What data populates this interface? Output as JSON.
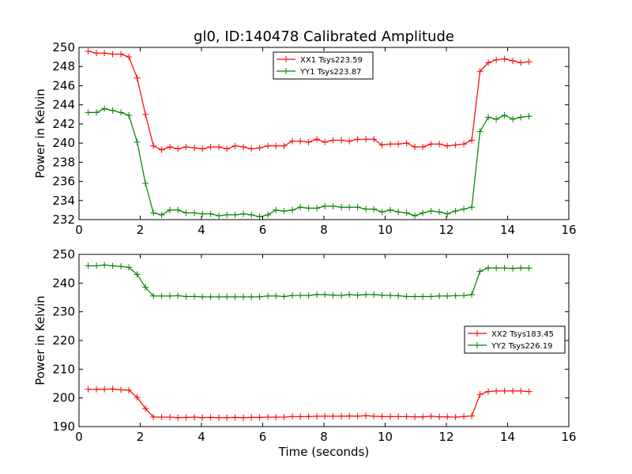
{
  "chart_data": [
    {
      "type": "line",
      "title": "gl0, ID:140478 Calibrated Amplitude",
      "xlabel": "",
      "ylabel": "Power in Kelvin",
      "xlim": [
        0,
        16
      ],
      "ylim": [
        232,
        250
      ],
      "xticks": [
        0,
        2,
        4,
        6,
        8,
        10,
        12,
        14,
        16
      ],
      "yticks": [
        232,
        234,
        236,
        238,
        240,
        242,
        244,
        246,
        248,
        250
      ],
      "grid": false,
      "legend_position": "top-center",
      "x": [
        0.3,
        0.57,
        0.83,
        1.1,
        1.37,
        1.63,
        1.9,
        2.17,
        2.43,
        2.7,
        2.97,
        3.23,
        3.5,
        3.77,
        4.03,
        4.3,
        4.57,
        4.83,
        5.1,
        5.37,
        5.63,
        5.9,
        6.17,
        6.43,
        6.7,
        6.97,
        7.23,
        7.5,
        7.77,
        8.03,
        8.3,
        8.57,
        8.83,
        9.1,
        9.37,
        9.63,
        9.9,
        10.17,
        10.43,
        10.7,
        10.97,
        11.23,
        11.5,
        11.77,
        12.03,
        12.3,
        12.57,
        12.83,
        13.1,
        13.37,
        13.63,
        13.9,
        14.17,
        14.43,
        14.7
      ],
      "series": [
        {
          "name": "XX1 Tsys223.59",
          "color": "#ff0000",
          "values": [
            249.6,
            249.4,
            249.4,
            249.3,
            249.3,
            249.0,
            246.8,
            243.0,
            239.7,
            239.3,
            239.6,
            239.4,
            239.6,
            239.5,
            239.4,
            239.6,
            239.6,
            239.4,
            239.7,
            239.6,
            239.4,
            239.5,
            239.7,
            239.7,
            239.7,
            240.2,
            240.2,
            240.1,
            240.4,
            240.1,
            240.3,
            240.3,
            240.2,
            240.4,
            240.4,
            240.4,
            239.8,
            239.9,
            239.9,
            240.0,
            239.6,
            239.6,
            239.9,
            239.9,
            239.7,
            239.8,
            239.9,
            240.3,
            247.5,
            248.4,
            248.7,
            248.8,
            248.6,
            248.4,
            248.5
          ]
        },
        {
          "name": "YY1 Tsys223.87",
          "color": "#008000",
          "values": [
            243.2,
            243.2,
            243.6,
            243.4,
            243.2,
            242.9,
            240.1,
            235.8,
            232.7,
            232.5,
            233.0,
            233.0,
            232.7,
            232.7,
            232.6,
            232.6,
            232.4,
            232.5,
            232.5,
            232.6,
            232.5,
            232.3,
            232.5,
            233.0,
            232.9,
            233.0,
            233.3,
            233.2,
            233.2,
            233.4,
            233.4,
            233.3,
            233.3,
            233.3,
            233.1,
            233.1,
            232.8,
            233.0,
            232.8,
            232.7,
            232.4,
            232.7,
            232.9,
            232.8,
            232.6,
            232.9,
            233.1,
            233.3,
            241.2,
            242.7,
            242.5,
            242.9,
            242.5,
            242.7,
            242.8
          ]
        }
      ]
    },
    {
      "type": "line",
      "title": "",
      "xlabel": "Time (seconds)",
      "ylabel": "Power in Kelvin",
      "xlim": [
        0,
        16
      ],
      "ylim": [
        190,
        250
      ],
      "xticks": [
        0,
        2,
        4,
        6,
        8,
        10,
        12,
        14,
        16
      ],
      "yticks": [
        190,
        200,
        210,
        220,
        230,
        240,
        250
      ],
      "grid": false,
      "legend_position": "center-right",
      "x": [
        0.3,
        0.57,
        0.83,
        1.1,
        1.37,
        1.63,
        1.9,
        2.17,
        2.43,
        2.7,
        2.97,
        3.23,
        3.5,
        3.77,
        4.03,
        4.3,
        4.57,
        4.83,
        5.1,
        5.37,
        5.63,
        5.9,
        6.17,
        6.43,
        6.7,
        6.97,
        7.23,
        7.5,
        7.77,
        8.03,
        8.3,
        8.57,
        8.83,
        9.1,
        9.37,
        9.63,
        9.9,
        10.17,
        10.43,
        10.7,
        10.97,
        11.23,
        11.5,
        11.77,
        12.03,
        12.3,
        12.57,
        12.83,
        13.1,
        13.37,
        13.63,
        13.9,
        14.17,
        14.43,
        14.7
      ],
      "series": [
        {
          "name": "XX2 Tsys183.45",
          "color": "#ff0000",
          "values": [
            203.0,
            203.0,
            203.0,
            203.1,
            202.8,
            202.7,
            200.2,
            196.3,
            193.3,
            193.3,
            193.3,
            193.1,
            193.2,
            193.3,
            193.1,
            193.2,
            193.1,
            193.1,
            193.2,
            193.1,
            193.2,
            193.2,
            193.3,
            193.3,
            193.3,
            193.5,
            193.5,
            193.5,
            193.6,
            193.6,
            193.6,
            193.6,
            193.7,
            193.6,
            193.8,
            193.6,
            193.5,
            193.5,
            193.5,
            193.5,
            193.4,
            193.4,
            193.6,
            193.4,
            193.4,
            193.3,
            193.5,
            193.7,
            201.2,
            202.2,
            202.4,
            202.4,
            202.4,
            202.4,
            202.2
          ]
        },
        {
          "name": "YY2 Tsys226.19",
          "color": "#008000",
          "values": [
            246.0,
            246.0,
            246.3,
            246.0,
            245.8,
            245.5,
            243.0,
            238.5,
            235.5,
            235.5,
            235.5,
            235.6,
            235.3,
            235.3,
            235.2,
            235.2,
            235.2,
            235.2,
            235.2,
            235.2,
            235.2,
            235.2,
            235.5,
            235.5,
            235.3,
            235.7,
            235.7,
            235.7,
            236.0,
            236.0,
            235.8,
            235.7,
            236.0,
            235.8,
            236.0,
            236.0,
            235.8,
            235.7,
            235.6,
            235.3,
            235.3,
            235.3,
            235.3,
            235.5,
            235.5,
            235.6,
            235.7,
            236.0,
            244.1,
            245.3,
            245.2,
            245.3,
            245.1,
            245.3,
            245.2
          ]
        }
      ]
    }
  ]
}
